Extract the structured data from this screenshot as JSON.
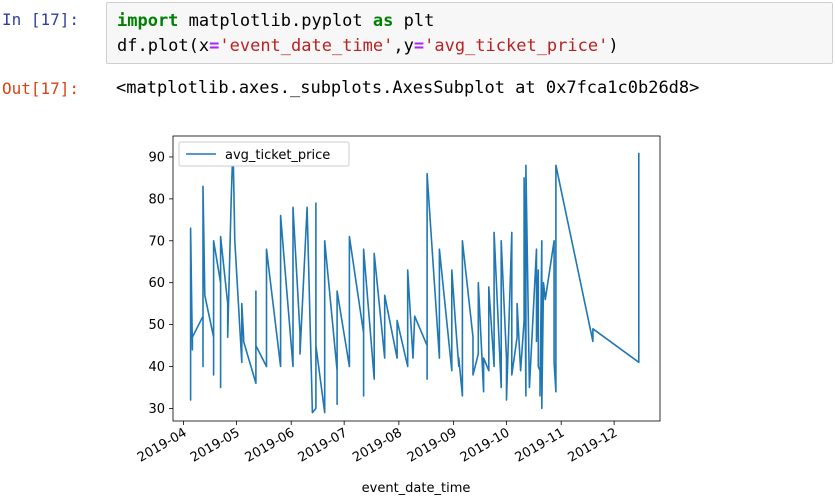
{
  "cell": {
    "in_prompt": "In [17]:",
    "out_prompt": "Out[17]:",
    "code_lines": [
      [
        {
          "t": "import",
          "c": "kw"
        },
        {
          "t": " matplotlib.pyplot ",
          "c": ""
        },
        {
          "t": "as",
          "c": "kw"
        },
        {
          "t": " plt",
          "c": ""
        }
      ],
      [
        {
          "t": "df.plot(x",
          "c": ""
        },
        {
          "t": "=",
          "c": "op"
        },
        {
          "t": "'event_date_time'",
          "c": "str"
        },
        {
          "t": ",y",
          "c": ""
        },
        {
          "t": "=",
          "c": "op"
        },
        {
          "t": "'avg_ticket_price'",
          "c": "str"
        },
        {
          "t": ")",
          "c": ""
        }
      ]
    ],
    "output_text": "<matplotlib.axes._subplots.AxesSubplot at 0x7fca1c0b26d8>"
  },
  "colors": {
    "line": "#1f77b4",
    "in_prompt": "#303f9f",
    "out_prompt": "#d84315"
  },
  "chart_data": {
    "type": "line",
    "xlabel": "event_date_time",
    "ylabel": "",
    "x_is_date": true,
    "xlim": [
      "2019-03-26",
      "2019-12-27"
    ],
    "ylim": [
      27,
      95
    ],
    "yticks": [
      30,
      40,
      50,
      60,
      70,
      80,
      90
    ],
    "xticks": [
      "2019-04",
      "2019-05",
      "2019-06",
      "2019-07",
      "2019-08",
      "2019-09",
      "2019-10",
      "2019-11",
      "2019-12"
    ],
    "legend": {
      "placement": "top-left",
      "entries": [
        "avg_ticket_price"
      ]
    },
    "grid": false,
    "series": [
      {
        "name": "avg_ticket_price",
        "x": [
          "2019-04-05",
          "2019-04-05",
          "2019-04-05",
          "2019-04-06",
          "2019-04-06",
          "2019-04-12",
          "2019-04-12",
          "2019-04-12",
          "2019-04-13",
          "2019-04-18",
          "2019-04-18",
          "2019-04-18",
          "2019-04-22",
          "2019-04-22",
          "2019-04-22",
          "2019-04-26",
          "2019-04-26",
          "2019-04-28",
          "2019-04-29",
          "2019-04-30",
          "2019-05-04",
          "2019-05-04",
          "2019-05-05",
          "2019-05-05",
          "2019-05-12",
          "2019-05-12",
          "2019-05-12",
          "2019-05-18",
          "2019-05-18",
          "2019-05-26",
          "2019-05-26",
          "2019-06-02",
          "2019-06-02",
          "2019-06-06",
          "2019-06-06",
          "2019-06-10",
          "2019-06-13",
          "2019-06-15",
          "2019-06-15",
          "2019-06-15",
          "2019-06-20",
          "2019-06-20",
          "2019-06-27",
          "2019-06-27",
          "2019-06-27",
          "2019-07-04",
          "2019-07-04",
          "2019-07-12",
          "2019-07-12",
          "2019-07-12",
          "2019-07-18",
          "2019-07-18",
          "2019-07-24",
          "2019-07-24",
          "2019-07-31",
          "2019-07-31",
          "2019-08-06",
          "2019-08-06",
          "2019-08-09",
          "2019-08-10",
          "2019-08-17",
          "2019-08-17",
          "2019-08-17",
          "2019-08-24",
          "2019-08-24",
          "2019-08-24",
          "2019-08-31",
          "2019-08-31",
          "2019-09-02",
          "2019-09-04",
          "2019-09-04",
          "2019-09-06",
          "2019-09-06",
          "2019-09-12",
          "2019-09-12",
          "2019-09-15",
          "2019-09-15",
          "2019-09-18",
          "2019-09-18",
          "2019-09-21",
          "2019-09-21",
          "2019-09-24",
          "2019-09-24",
          "2019-09-28",
          "2019-09-28",
          "2019-10-01",
          "2019-10-01",
          "2019-10-01",
          "2019-10-04",
          "2019-10-04",
          "2019-10-07",
          "2019-10-07",
          "2019-10-09",
          "2019-10-09",
          "2019-10-11",
          "2019-10-11",
          "2019-10-12",
          "2019-10-12",
          "2019-10-14",
          "2019-10-18",
          "2019-10-18",
          "2019-10-19",
          "2019-10-19",
          "2019-10-20",
          "2019-10-20",
          "2019-10-21",
          "2019-10-21",
          "2019-10-22",
          "2019-10-23",
          "2019-10-28",
          "2019-10-28",
          "2019-10-29",
          "2019-10-29",
          "2019-11-19",
          "2019-11-19",
          "2019-12-15",
          "2019-12-15"
        ],
        "y": [
          53,
          32,
          73,
          44,
          47,
          52,
          40,
          83,
          57,
          47,
          38,
          70,
          60,
          35,
          71,
          55,
          47,
          80,
          93,
          70,
          41,
          55,
          47,
          46,
          36,
          58,
          45,
          40,
          68,
          40,
          76,
          40,
          78,
          48,
          43,
          78,
          29,
          30,
          79,
          45,
          29,
          70,
          39,
          31,
          58,
          40,
          71,
          48,
          33,
          68,
          37,
          67,
          42,
          57,
          42,
          51,
          40,
          63,
          42,
          52,
          45,
          37,
          86,
          42,
          48,
          68,
          39,
          63,
          51,
          40,
          42,
          33,
          70,
          47,
          38,
          43,
          60,
          34,
          42,
          39,
          59,
          40,
          72,
          35,
          70,
          42,
          42,
          32,
          72,
          38,
          47,
          55,
          39,
          39,
          51,
          85,
          33,
          88,
          35,
          68,
          46,
          63,
          40,
          39,
          33,
          70,
          30,
          60,
          56,
          70,
          41,
          34,
          88,
          46,
          49,
          41,
          91
        ]
      }
    ]
  }
}
